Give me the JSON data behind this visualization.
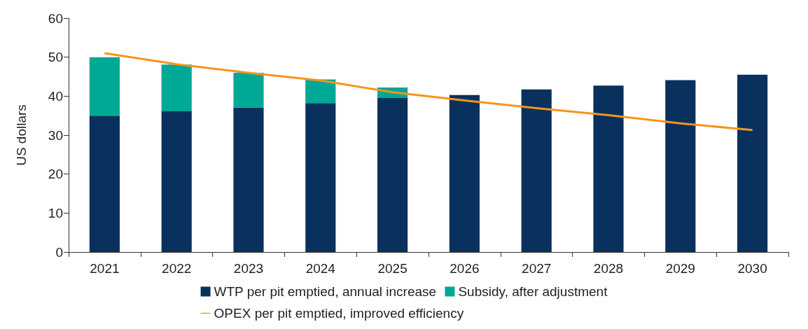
{
  "chart_data": {
    "type": "bar",
    "stacked": true,
    "ylabel": "US dollars",
    "categories": [
      "2021",
      "2022",
      "2023",
      "2024",
      "2025",
      "2026",
      "2027",
      "2028",
      "2029",
      "2030"
    ],
    "series": [
      {
        "name": "WTP per pit emptied, annual increase",
        "color": "#0a315d",
        "values": [
          35,
          36.1,
          37.1,
          38.2,
          39.5,
          40.3,
          41.7,
          42.7,
          44.1,
          45.5
        ]
      },
      {
        "name": "Subsidy, after adjustment",
        "color": "#00a896",
        "values": [
          15,
          12,
          8.9,
          6.1,
          2.7,
          null,
          null,
          null,
          null,
          null
        ]
      },
      {
        "name": "OPEX per pit emptied, improved efficiency",
        "type": "line",
        "color": "#f7941d",
        "values": [
          51,
          48.2,
          46,
          44,
          41,
          38.9,
          36.9,
          35.1,
          33,
          31.3
        ]
      }
    ],
    "ylim": [
      0,
      60
    ],
    "yticks": [
      0,
      10,
      20,
      30,
      40,
      50,
      60
    ],
    "grid": false,
    "legend": "bottom",
    "marker": "none"
  }
}
